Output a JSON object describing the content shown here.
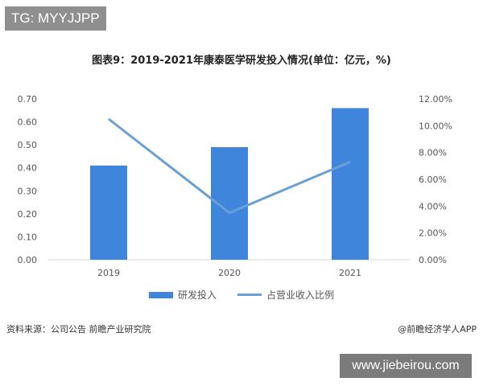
{
  "tag": "TG: MYYJJPP",
  "footer": {
    "source": "资料来源：公司公告 前瞻产业研究院",
    "credit": "@前瞻经济学人APP",
    "watermark": "www.jiebeirou.com"
  },
  "chart_data": {
    "type": "bar+line",
    "title": "图表9：2019-2021年康泰医学研发投入情况(单位：亿元，%)",
    "categories": [
      "2019",
      "2020",
      "2021"
    ],
    "series": [
      {
        "name": "研发投入",
        "type": "bar",
        "axis": "left",
        "values": [
          0.41,
          0.49,
          0.66
        ]
      },
      {
        "name": "占营业收入比例",
        "type": "line",
        "axis": "right",
        "values": [
          10.5,
          3.5,
          7.3
        ]
      }
    ],
    "y_left": {
      "range": [
        0,
        0.7
      ],
      "ticks": [
        "0.00",
        "0.10",
        "0.20",
        "0.30",
        "0.40",
        "0.50",
        "0.60",
        "0.70"
      ]
    },
    "y_right": {
      "range": [
        0,
        12
      ],
      "ticks": [
        "0.00%",
        "2.00%",
        "4.00%",
        "6.00%",
        "8.00%",
        "10.00%",
        "12.00%"
      ]
    },
    "grid": false,
    "legend_position": "bottom",
    "colors": {
      "bar": "#3f85dc",
      "line": "#6a9fd6"
    }
  }
}
